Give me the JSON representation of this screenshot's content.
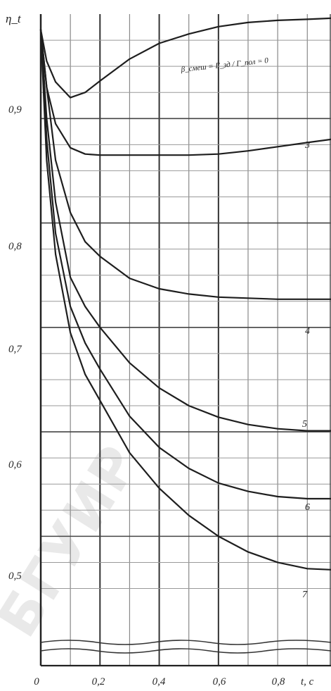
{
  "chart_data": {
    "type": "line",
    "ylabel": "η_t",
    "xlabel": "t, c",
    "annotation": "β_смеш = Г_зд / Г_пол = 0",
    "watermark": "БГУИР",
    "x_ticks": [
      "0",
      "0,2",
      "0,4",
      "0,6",
      "0,8"
    ],
    "y_ticks": [
      "0,9",
      "0,8",
      "0,7",
      "0,6",
      "0,5"
    ],
    "xlim": [
      0,
      0.98
    ],
    "ylim": [
      0.42,
      1.0
    ],
    "grid": true,
    "series": [
      {
        "label": "",
        "x": [
          0,
          0.02,
          0.05,
          0.1,
          0.15,
          0.2,
          0.3,
          0.4,
          0.5,
          0.6,
          0.7,
          0.8,
          0.9,
          0.98
        ],
        "y": [
          0.985,
          0.955,
          0.935,
          0.92,
          0.925,
          0.936,
          0.957,
          0.972,
          0.981,
          0.988,
          0.992,
          0.994,
          0.995,
          0.996
        ]
      },
      {
        "label": "3",
        "x": [
          0,
          0.02,
          0.05,
          0.1,
          0.15,
          0.2,
          0.3,
          0.4,
          0.5,
          0.6,
          0.7,
          0.8,
          0.9,
          0.98
        ],
        "y": [
          0.985,
          0.93,
          0.895,
          0.872,
          0.866,
          0.865,
          0.865,
          0.865,
          0.865,
          0.866,
          0.869,
          0.873,
          0.877,
          0.88
        ]
      },
      {
        "label": "4",
        "x": [
          0,
          0.02,
          0.05,
          0.1,
          0.15,
          0.2,
          0.3,
          0.4,
          0.5,
          0.6,
          0.7,
          0.8,
          0.9,
          0.98
        ],
        "y": [
          0.985,
          0.93,
          0.86,
          0.81,
          0.782,
          0.768,
          0.747,
          0.737,
          0.732,
          0.729,
          0.728,
          0.727,
          0.727,
          0.727
        ]
      },
      {
        "label": "5",
        "x": [
          0,
          0.02,
          0.05,
          0.1,
          0.15,
          0.2,
          0.3,
          0.4,
          0.5,
          0.6,
          0.7,
          0.8,
          0.9,
          0.98
        ],
        "y": [
          0.985,
          0.9,
          0.82,
          0.748,
          0.72,
          0.7,
          0.666,
          0.642,
          0.625,
          0.614,
          0.607,
          0.603,
          0.601,
          0.601
        ]
      },
      {
        "label": "6",
        "x": [
          0,
          0.02,
          0.05,
          0.1,
          0.15,
          0.2,
          0.3,
          0.4,
          0.5,
          0.6,
          0.7,
          0.8,
          0.9,
          0.98
        ],
        "y": [
          0.985,
          0.88,
          0.79,
          0.72,
          0.685,
          0.66,
          0.615,
          0.585,
          0.565,
          0.551,
          0.543,
          0.538,
          0.536,
          0.536
        ]
      },
      {
        "label": "7",
        "x": [
          0,
          0.02,
          0.05,
          0.1,
          0.15,
          0.2,
          0.3,
          0.4,
          0.5,
          0.6,
          0.7,
          0.8,
          0.9,
          0.98
        ],
        "y": [
          0.985,
          0.86,
          0.77,
          0.695,
          0.655,
          0.63,
          0.58,
          0.546,
          0.52,
          0.5,
          0.485,
          0.475,
          0.469,
          0.468
        ]
      }
    ]
  }
}
